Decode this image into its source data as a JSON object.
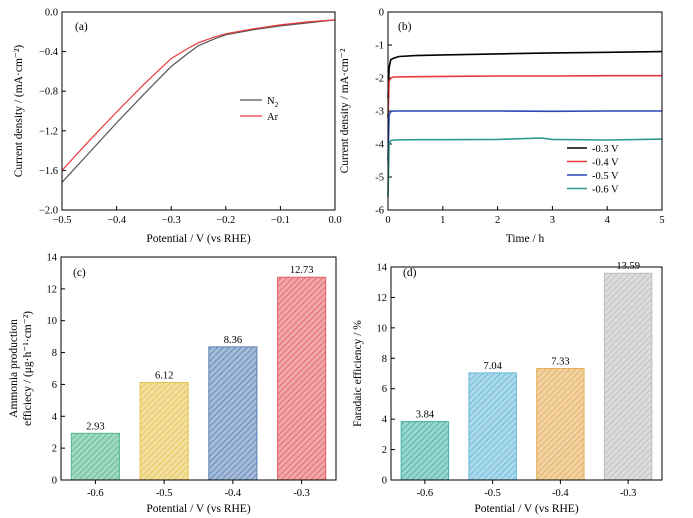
{
  "chart_data": [
    {
      "panel": "(a)",
      "type": "line",
      "xlabel": "Potential / V (vs RHE)",
      "ylabel": "Current density / (mA·cm⁻²)",
      "xlim": [
        -0.5,
        0.0
      ],
      "ylim": [
        -2.0,
        0.0
      ],
      "xticks": [
        -0.5,
        -0.4,
        -0.3,
        -0.2,
        -0.1,
        0.0
      ],
      "xtick_labels": [
        "−0.5",
        "−0.4",
        "−0.3",
        "−0.2",
        "−0.1",
        "0.0"
      ],
      "yticks": [
        -2.0,
        -1.6,
        -1.2,
        -0.8,
        -0.4,
        0.0
      ],
      "ytick_labels": [
        "−2.0",
        "−1.6",
        "−1.2",
        "−0.8",
        "−0.4",
        "0.0"
      ],
      "legend_position": "right",
      "series": [
        {
          "name": "N",
          "name_sub": "2",
          "color": "#555555",
          "x": [
            -0.5,
            -0.45,
            -0.4,
            -0.35,
            -0.3,
            -0.27,
            -0.25,
            -0.22,
            -0.2,
            -0.15,
            -0.1,
            -0.05,
            0.0
          ],
          "y": [
            -1.72,
            -1.42,
            -1.12,
            -0.83,
            -0.55,
            -0.42,
            -0.34,
            -0.27,
            -0.23,
            -0.18,
            -0.14,
            -0.11,
            -0.08
          ]
        },
        {
          "name": "Ar",
          "name_sub": "",
          "color": "#e8373d",
          "x": [
            -0.5,
            -0.45,
            -0.4,
            -0.35,
            -0.3,
            -0.27,
            -0.25,
            -0.22,
            -0.2,
            -0.15,
            -0.1,
            -0.05,
            0.0
          ],
          "y": [
            -1.6,
            -1.3,
            -1.01,
            -0.73,
            -0.47,
            -0.37,
            -0.31,
            -0.25,
            -0.22,
            -0.17,
            -0.13,
            -0.1,
            -0.08
          ]
        }
      ]
    },
    {
      "panel": "(b)",
      "type": "line",
      "xlabel": "Time / h",
      "ylabel": "Current density / mA·cm⁻²",
      "xlim": [
        0,
        5
      ],
      "ylim": [
        -6,
        0
      ],
      "xticks": [
        0,
        1,
        2,
        3,
        4,
        5
      ],
      "xtick_labels": [
        "0",
        "1",
        "2",
        "3",
        "4",
        "5"
      ],
      "yticks": [
        0,
        -1,
        -2,
        -3,
        -4,
        -5,
        -6
      ],
      "ytick_labels": [
        "0",
        "-1",
        "-2",
        "-3",
        "-4",
        "-5",
        "-6"
      ],
      "legend_position": "bottom-right",
      "series": [
        {
          "name": "-0.3 V",
          "color": "#000000",
          "x": [
            0.0,
            0.02,
            0.05,
            0.1,
            0.2,
            0.5,
            1,
            2,
            3,
            4,
            5
          ],
          "y": [
            -2.6,
            -1.7,
            -1.45,
            -1.4,
            -1.35,
            -1.32,
            -1.3,
            -1.27,
            -1.24,
            -1.22,
            -1.2
          ]
        },
        {
          "name": "-0.4 V",
          "color": "#e8373d",
          "x": [
            0.0,
            0.02,
            0.05,
            0.1,
            0.5,
            1,
            2,
            3,
            4,
            5
          ],
          "y": [
            -3.2,
            -2.1,
            -2.0,
            -1.97,
            -1.96,
            -1.95,
            -1.94,
            -1.94,
            -1.93,
            -1.93
          ]
        },
        {
          "name": "-0.5 V",
          "color": "#2a49b8",
          "x": [
            0.0,
            0.02,
            0.05,
            0.1,
            1,
            2,
            3,
            4,
            5
          ],
          "y": [
            -4.5,
            -3.1,
            -3.02,
            -3.0,
            -3.0,
            -3.0,
            -3.01,
            -3.0,
            -3.0
          ]
        },
        {
          "name": "-0.6 V",
          "color": "#2f9a90",
          "x": [
            0.0,
            0.02,
            0.05,
            0.1,
            0.5,
            1,
            2,
            2.8,
            3,
            4,
            5
          ],
          "y": [
            -5.6,
            -4.0,
            -3.9,
            -3.88,
            -3.87,
            -3.87,
            -3.86,
            -3.82,
            -3.86,
            -3.88,
            -3.85
          ]
        }
      ]
    },
    {
      "panel": "(c)",
      "type": "bar",
      "xlabel": "Potential / V (vs RHE)",
      "ylabel_line1": "Ammonia production",
      "ylabel_line2": "efficiecy / (μg·h⁻¹·cm⁻²)",
      "ylim": [
        0,
        14
      ],
      "yticks": [
        0,
        2,
        4,
        6,
        8,
        10,
        12,
        14
      ],
      "ytick_labels": [
        "0",
        "2",
        "4",
        "6",
        "8",
        "10",
        "12",
        "14"
      ],
      "categories": [
        "-0.6",
        "-0.5",
        "-0.4",
        "-0.3"
      ],
      "values": [
        2.93,
        6.12,
        8.36,
        12.73
      ],
      "value_labels": [
        "2.93",
        "6.12",
        "8.36",
        "12.73"
      ],
      "colors": [
        "#56b88c",
        "#e6c24e",
        "#5a82b8",
        "#e35f62"
      ]
    },
    {
      "panel": "(d)",
      "type": "bar",
      "xlabel": "Potential / V (vs RHE)",
      "ylabel": "Faradaic efficiency / %",
      "ylim": [
        0,
        14
      ],
      "yticks": [
        0,
        2,
        4,
        6,
        8,
        10,
        12,
        14
      ],
      "ytick_labels": [
        "0",
        "2",
        "4",
        "6",
        "8",
        "10",
        "12",
        "14"
      ],
      "categories": [
        "-0.6",
        "-0.5",
        "-0.4",
        "-0.3"
      ],
      "values": [
        3.84,
        7.04,
        7.33,
        13.59
      ],
      "value_labels": [
        "3.84",
        "7.04",
        "7.33",
        "13.59"
      ],
      "colors": [
        "#45b0a4",
        "#66b8d8",
        "#e4ad58",
        "#bdbdbd"
      ]
    }
  ]
}
